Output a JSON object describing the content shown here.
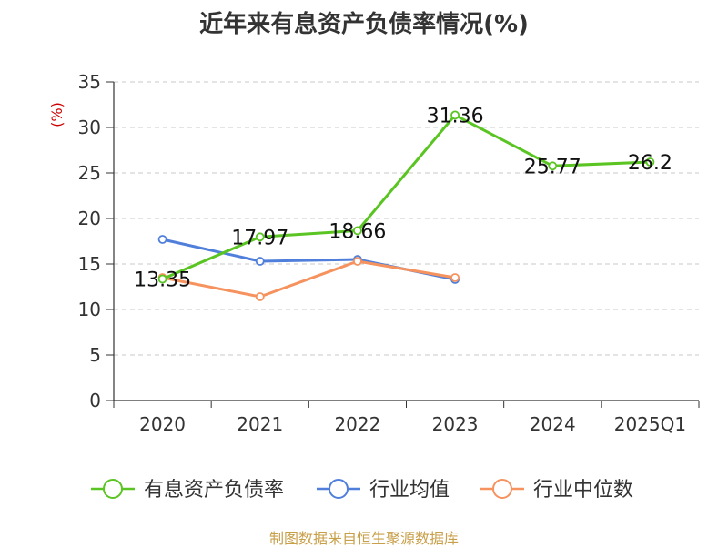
{
  "chart_data": {
    "type": "line",
    "title": "近年来有息资产负债率情况(%)",
    "ylabel": "(%)",
    "categories": [
      "2020",
      "2021",
      "2022",
      "2023",
      "2024",
      "2025Q1"
    ],
    "ylim": [
      0,
      35
    ],
    "yticks": [
      0,
      5,
      10,
      15,
      20,
      25,
      30,
      35
    ],
    "grid": true,
    "legend_position": "bottom",
    "series": [
      {
        "name": "有息资产负债率",
        "color": "#5ac522",
        "values": [
          13.35,
          17.97,
          18.66,
          31.36,
          25.77,
          26.2
        ],
        "labels": [
          "13.35",
          "17.97",
          "18.66",
          "31.36",
          "25.77",
          "26.2"
        ]
      },
      {
        "name": "行业均值",
        "color": "#4f7fdb",
        "values": [
          17.7,
          15.3,
          15.5,
          13.3,
          null,
          null
        ]
      },
      {
        "name": "行业中位数",
        "color": "#f5925e",
        "values": [
          13.5,
          11.4,
          15.3,
          13.5,
          null,
          null
        ]
      }
    ]
  },
  "source": "制图数据来自恒生聚源数据库"
}
